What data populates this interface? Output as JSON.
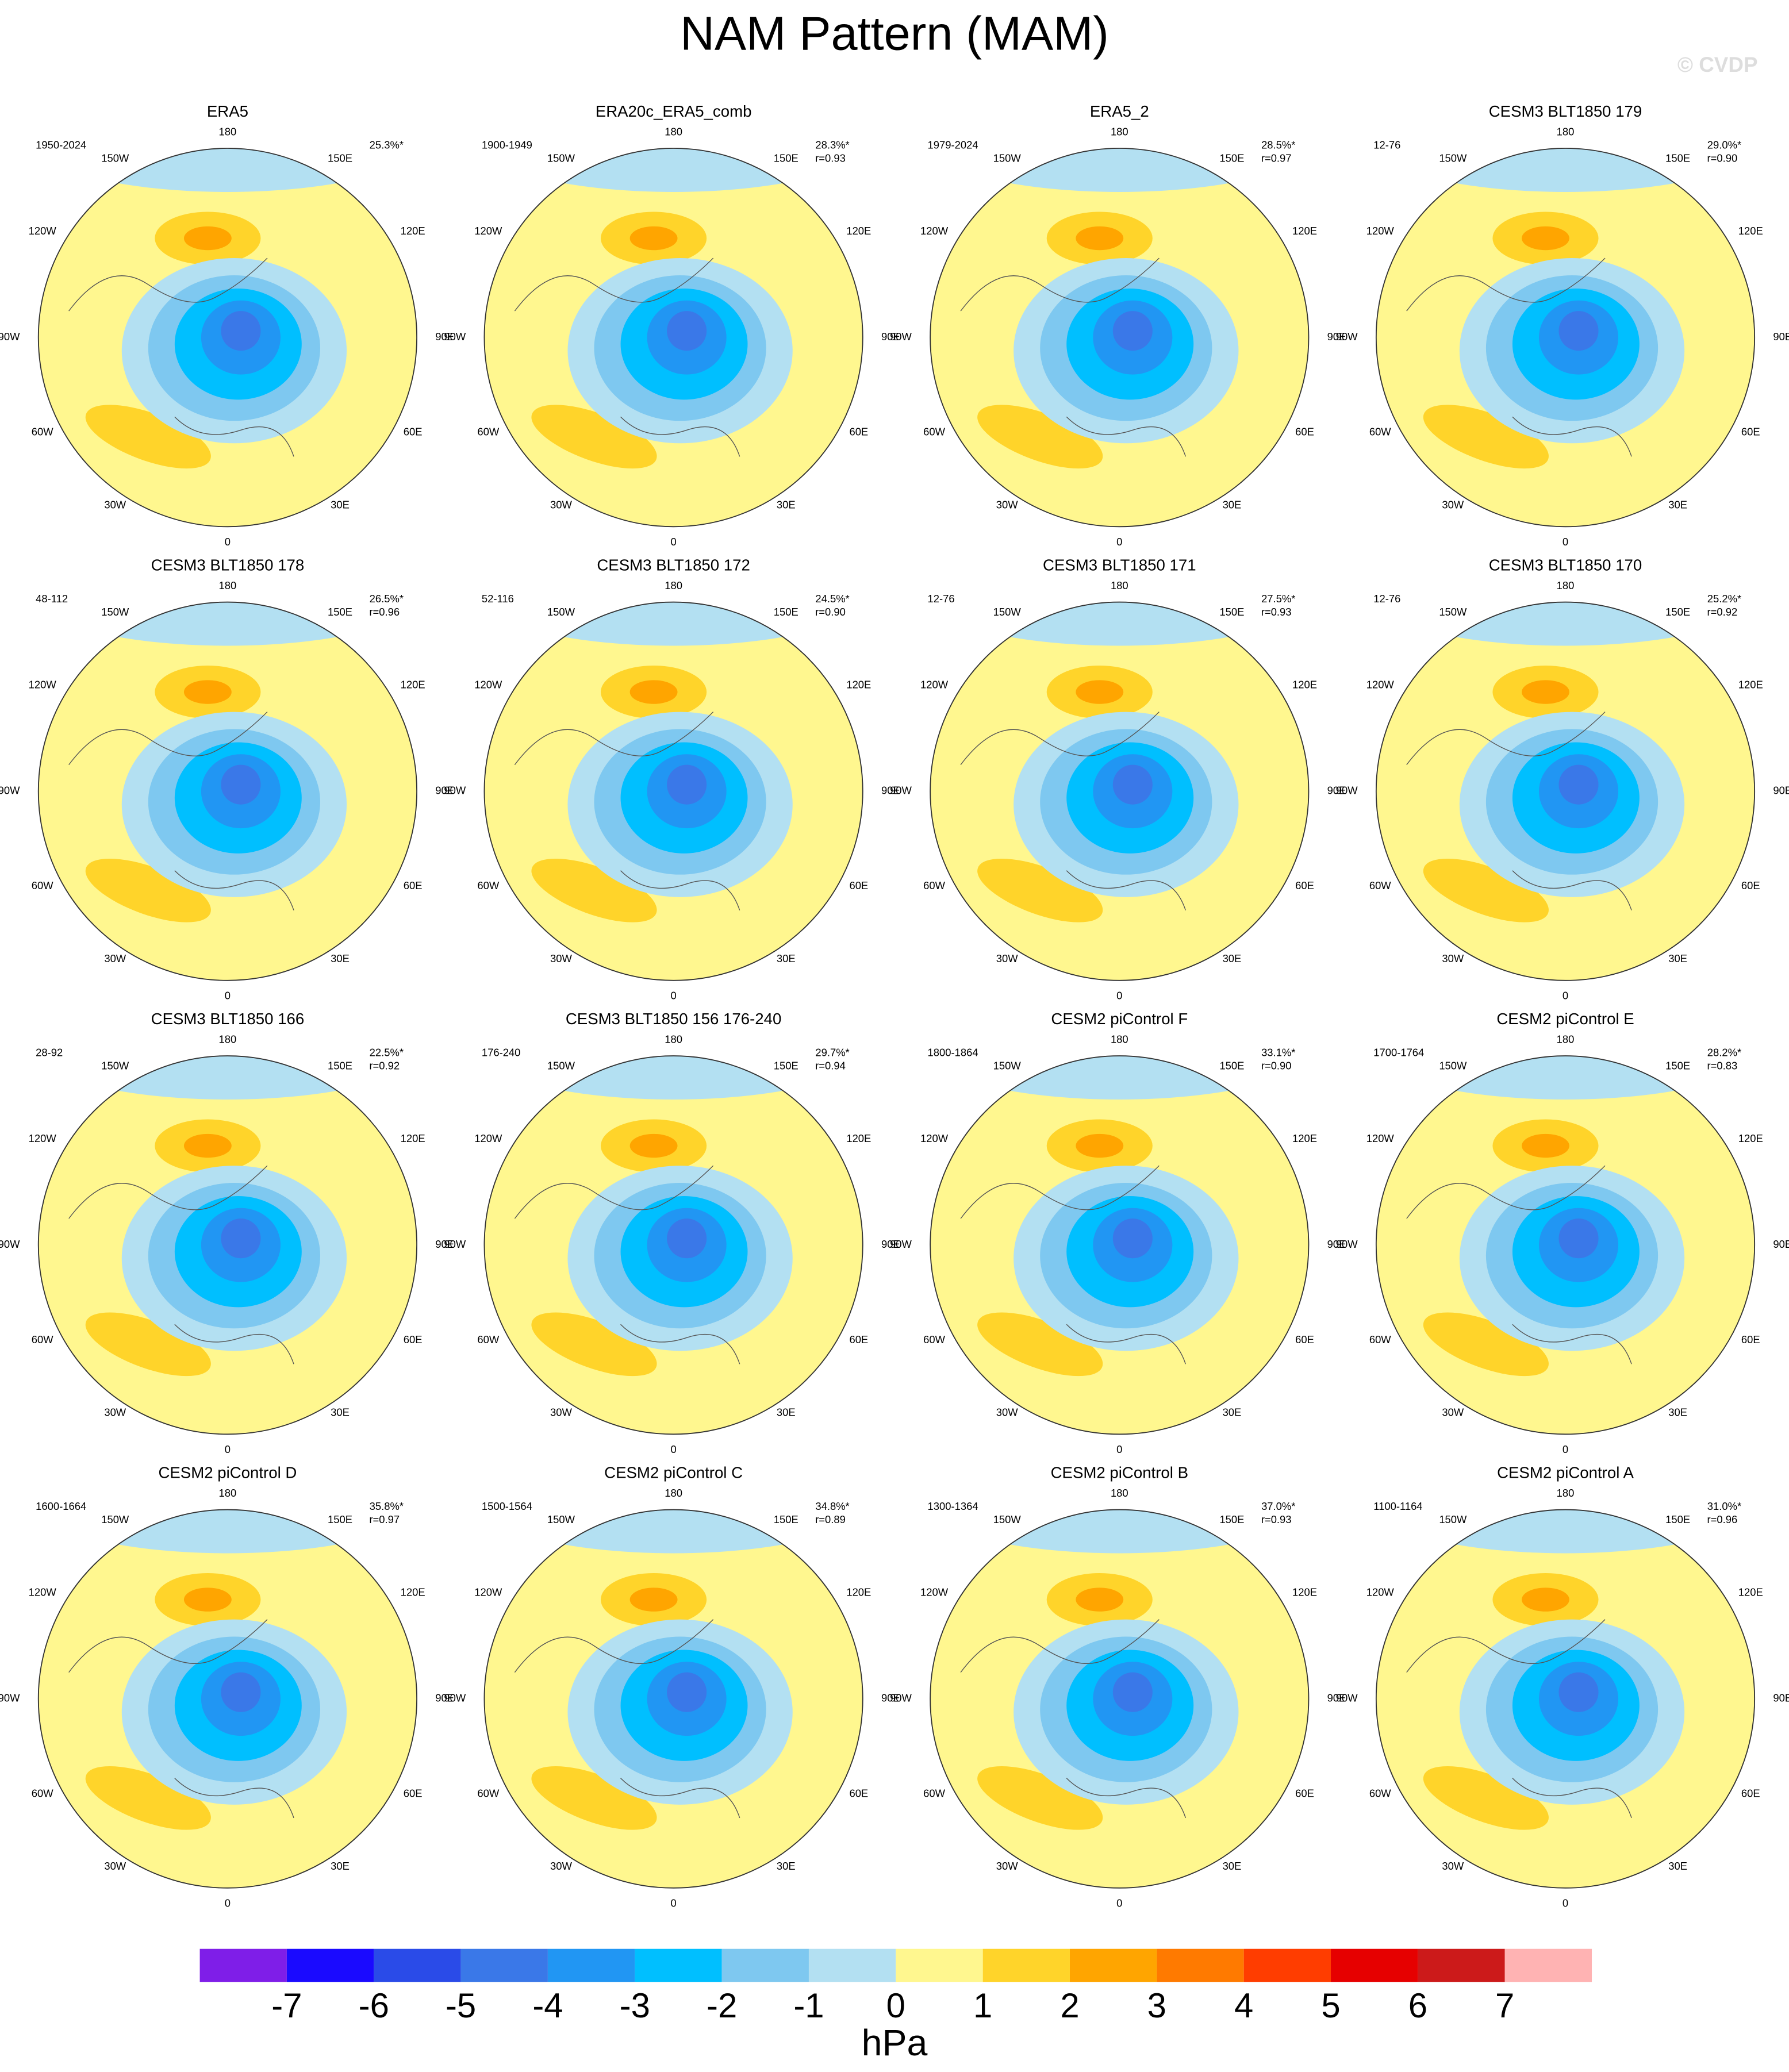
{
  "header": {
    "title": "NAM Pattern (MAM)",
    "watermark": "© CVDP"
  },
  "lon_labels": [
    "180",
    "150E",
    "120E",
    "90E",
    "60E",
    "30E",
    "0",
    "30W",
    "60W",
    "90W",
    "120W",
    "150W"
  ],
  "panels": [
    {
      "title": "ERA5",
      "period": "1950-2024",
      "variance": "25.3%*"
    },
    {
      "title": "ERA20c_ERA5_comb",
      "period": "1900-1949",
      "variance": "28.3%*",
      "r": "r=0.93"
    },
    {
      "title": "ERA5_2",
      "period": "1979-2024",
      "variance": "28.5%*",
      "r": "r=0.97"
    },
    {
      "title": "CESM3 BLT1850 179",
      "period": "12-76",
      "variance": "29.0%*",
      "r": "r=0.90"
    },
    {
      "title": "CESM3 BLT1850 178",
      "period": "48-112",
      "variance": "26.5%*",
      "r": "r=0.96"
    },
    {
      "title": "CESM3 BLT1850 172",
      "period": "52-116",
      "variance": "24.5%*",
      "r": "r=0.90"
    },
    {
      "title": "CESM3 BLT1850 171",
      "period": "12-76",
      "variance": "27.5%*",
      "r": "r=0.93"
    },
    {
      "title": "CESM3 BLT1850 170",
      "period": "12-76",
      "variance": "25.2%*",
      "r": "r=0.92"
    },
    {
      "title": "CESM3 BLT1850 166",
      "period": "28-92",
      "variance": "22.5%*",
      "r": "r=0.92"
    },
    {
      "title": "CESM3 BLT1850 156 176-240",
      "period": "176-240",
      "variance": "29.7%*",
      "r": "r=0.94"
    },
    {
      "title": "CESM2 piControl F",
      "period": "1800-1864",
      "variance": "33.1%*",
      "r": "r=0.90"
    },
    {
      "title": "CESM2 piControl E",
      "period": "1700-1764",
      "variance": "28.2%*",
      "r": "r=0.83"
    },
    {
      "title": "CESM2 piControl D",
      "period": "1600-1664",
      "variance": "35.8%*",
      "r": "r=0.97"
    },
    {
      "title": "CESM2 piControl C",
      "period": "1500-1564",
      "variance": "34.8%*",
      "r": "r=0.89"
    },
    {
      "title": "CESM2 piControl B",
      "period": "1300-1364",
      "variance": "37.0%*",
      "r": "r=0.93"
    },
    {
      "title": "CESM2 piControl A",
      "period": "1100-1164",
      "variance": "31.0%*",
      "r": "r=0.96"
    }
  ],
  "colorbar": {
    "levels": [
      -7,
      -6,
      -5,
      -4,
      -3,
      -2,
      -1,
      0,
      1,
      2,
      3,
      4,
      5,
      6,
      7
    ],
    "colors": [
      "#7f1ee8",
      "#1a0aff",
      "#2a4be8",
      "#3a78e8",
      "#2196f3",
      "#00bfff",
      "#7ec8f0",
      "#b3e0f2",
      "#fff78f",
      "#ffd42a",
      "#ffa500",
      "#ff7a00",
      "#ff3d00",
      "#e60000",
      "#cc1a1a",
      "#ffb3b3"
    ],
    "unit": "hPa"
  }
}
